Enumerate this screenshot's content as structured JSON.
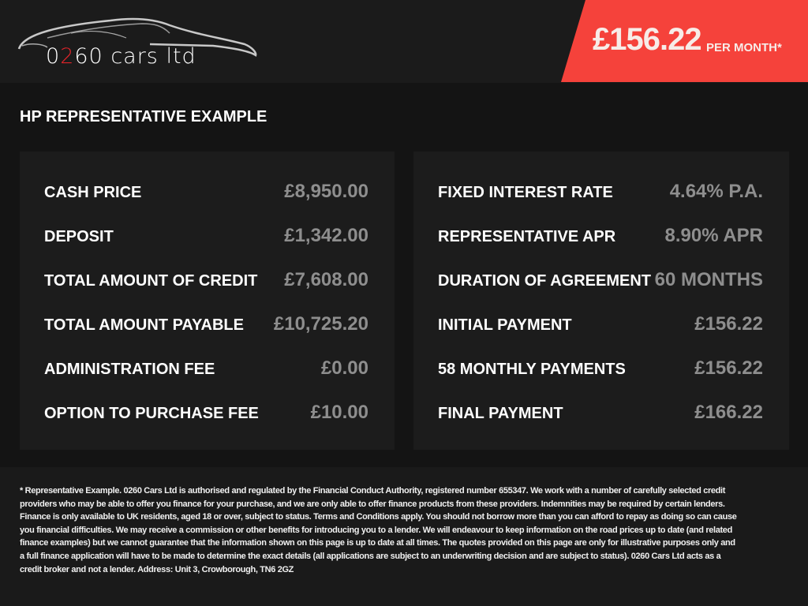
{
  "brand": {
    "logo_text_prefix": "0",
    "logo_text_red": "2",
    "logo_text_suffix": "60 cars ltd",
    "accent_color": "#f5423b"
  },
  "price": {
    "amount": "£156.22",
    "label": "PER MONTH*"
  },
  "title": "HP REPRESENTATIVE EXAMPLE",
  "left_rows": [
    {
      "label": "CASH PRICE",
      "value": "£8,950.00"
    },
    {
      "label": "DEPOSIT",
      "value": "£1,342.00"
    },
    {
      "label": "TOTAL AMOUNT OF CREDIT",
      "value": "£7,608.00"
    },
    {
      "label": "TOTAL AMOUNT PAYABLE",
      "value": "£10,725.20"
    },
    {
      "label": "ADMINISTRATION FEE",
      "value": "£0.00"
    },
    {
      "label": "OPTION TO PURCHASE FEE",
      "value": "£10.00"
    }
  ],
  "right_rows": [
    {
      "label": "FIXED INTEREST RATE",
      "value": "4.64% P.A."
    },
    {
      "label": "REPRESENTATIVE APR",
      "value": "8.90% APR"
    },
    {
      "label": "DURATION OF AGREEMENT",
      "value": "60 MONTHS"
    },
    {
      "label": "INITIAL PAYMENT",
      "value": "£156.22"
    },
    {
      "label": "58 MONTHLY PAYMENTS",
      "value": "£156.22"
    },
    {
      "label": "FINAL PAYMENT",
      "value": "£166.22"
    }
  ],
  "disclaimer": "* Representative Example. 0260 Cars Ltd is authorised and regulated by the Financial Conduct Authority, registered number 655347. We work with a number of carefully selected credit providers who may be able to offer you finance for your purchase, and we are only able to offer finance products from these providers. Indemnities may be required by certain lenders. Finance is only available to UK residents, aged 18 or over, subject to status. Terms and Conditions apply. You should not borrow more than you can afford to repay as doing so can cause you financial difficulties. We may receive a commission or other benefits for introducing you to a lender. We will endeavour to keep information on the road prices up to date (and related finance examples) but we cannot guarantee that the information shown on this page is up to date at all times. The quotes provided on this page are only for illustrative purposes only and a full finance application will have to be made to determine the exact details (all applications are subject to an underwriting decision and are subject to status). 0260 Cars Ltd acts as a credit broker and not a lender. Address: Unit 3, Crowborough, TN6 2GZ"
}
